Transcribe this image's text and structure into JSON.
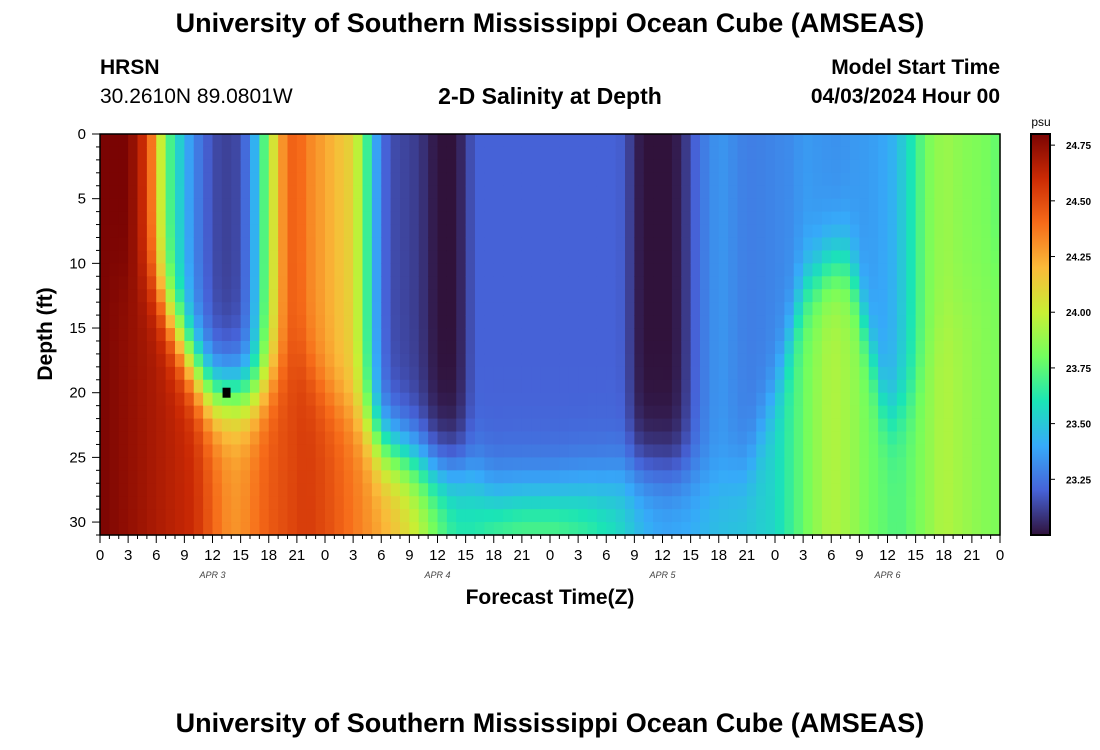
{
  "header": {
    "title": "University of Southern Mississippi Ocean Cube (AMSEAS)",
    "station": "HRSN",
    "coords": "30.2610N  89.0801W",
    "subtitle": "2-D Salinity at Depth",
    "start_label": "Model Start Time",
    "start_value": "04/03/2024 Hour 00"
  },
  "footer": {
    "title": "University of Southern Mississippi Ocean Cube (AMSEAS)"
  },
  "chart_data": {
    "type": "heatmap",
    "title": "2-D Salinity at Depth",
    "xlabel": "Forecast Time(Z)",
    "ylabel": "Depth (ft)",
    "xlim": [
      0,
      96
    ],
    "ylim": [
      0,
      31
    ],
    "y_inverted": true,
    "x_ticks": [
      0,
      3,
      6,
      9,
      12,
      15,
      18,
      21,
      24,
      27,
      30,
      33,
      36,
      39,
      42,
      45,
      48,
      51,
      54,
      57,
      60,
      63,
      66,
      69,
      72,
      75,
      78,
      81,
      84,
      87,
      90,
      93,
      96
    ],
    "x_tick_labels": [
      "0",
      "3",
      "6",
      "9",
      "12",
      "15",
      "18",
      "21",
      "0",
      "3",
      "6",
      "9",
      "12",
      "15",
      "18",
      "21",
      "0",
      "3",
      "6",
      "9",
      "12",
      "15",
      "18",
      "21",
      "0",
      "3",
      "6",
      "9",
      "12",
      "15",
      "18",
      "21",
      "0"
    ],
    "day_labels": [
      {
        "x": 12,
        "label": "APR 3"
      },
      {
        "x": 36,
        "label": "APR 4"
      },
      {
        "x": 60,
        "label": "APR 5"
      },
      {
        "x": 84,
        "label": "APR 6"
      }
    ],
    "y_ticks": [
      0,
      5,
      10,
      15,
      20,
      25,
      30
    ],
    "y_tick_labels": [
      "0",
      "5",
      "10",
      "15",
      "20",
      "25",
      "30"
    ],
    "colorbar": {
      "unit": "psu",
      "min": 23.0,
      "max": 24.8,
      "ticks": [
        23.25,
        23.5,
        23.75,
        24.0,
        24.25,
        24.5,
        24.75
      ],
      "tick_labels": [
        "23.25",
        "23.50",
        "23.75",
        "24.00",
        "24.25",
        "24.50",
        "24.75"
      ],
      "colors": [
        "#30123b",
        "#4662d7",
        "#36aaf9",
        "#1ae4b6",
        "#72fe5e",
        "#c8ef34",
        "#faba39",
        "#f66b19",
        "#cb2a04",
        "#7a0403"
      ]
    },
    "surface_profile": {
      "x": [
        0,
        3,
        5,
        6,
        7,
        8,
        10,
        12,
        13,
        14,
        15,
        16,
        17,
        18,
        19,
        20,
        21,
        22,
        23,
        24,
        27,
        28,
        29,
        30,
        31,
        33,
        34,
        35,
        36,
        37,
        38,
        40,
        42,
        45,
        48,
        53,
        55,
        56,
        57,
        58,
        60,
        61,
        62,
        63,
        64,
        65,
        66,
        68,
        69,
        70,
        72,
        74,
        75,
        77,
        79,
        80,
        82,
        84,
        85,
        86,
        87,
        88,
        90,
        92,
        94,
        95,
        96
      ],
      "value": [
        24.8,
        24.8,
        24.55,
        24.2,
        23.8,
        23.6,
        23.3,
        23.15,
        23.12,
        23.12,
        23.15,
        23.3,
        23.55,
        23.9,
        24.2,
        24.4,
        24.45,
        24.35,
        24.3,
        24.25,
        24.1,
        23.85,
        23.5,
        23.25,
        23.15,
        23.12,
        23.1,
        23.05,
        23.0,
        23.0,
        23.0,
        23.2,
        23.2,
        23.2,
        23.2,
        23.2,
        23.2,
        23.18,
        23.05,
        23.0,
        23.0,
        23.0,
        23.05,
        23.15,
        23.25,
        23.3,
        23.35,
        23.3,
        23.28,
        23.28,
        23.3,
        23.32,
        23.36,
        23.34,
        23.33,
        23.35,
        23.36,
        23.4,
        23.45,
        23.55,
        23.65,
        23.8,
        23.9,
        23.85,
        23.82,
        23.8,
        23.75
      ]
    },
    "deep_profile": {
      "x": [
        0,
        10,
        13,
        14,
        15,
        18,
        20,
        22,
        24,
        30,
        32,
        34,
        36,
        38,
        40,
        42,
        45,
        48,
        50,
        52,
        55,
        58,
        60,
        63,
        66,
        69,
        72,
        74,
        76,
        78,
        80,
        82,
        84,
        85,
        86,
        88,
        90,
        92,
        94,
        96
      ],
      "value": [
        24.8,
        24.6,
        24.35,
        24.3,
        24.3,
        24.45,
        24.5,
        24.55,
        24.5,
        24.25,
        24.15,
        24.0,
        23.8,
        23.65,
        23.65,
        23.75,
        23.8,
        23.8,
        23.75,
        23.7,
        23.6,
        23.45,
        23.4,
        23.42,
        23.48,
        23.5,
        23.55,
        23.7,
        23.85,
        23.95,
        23.9,
        23.8,
        23.75,
        23.72,
        23.75,
        23.85,
        23.95,
        23.9,
        23.85,
        23.82
      ]
    },
    "transition_depth": {
      "x": [
        0,
        6,
        10,
        12,
        14,
        16,
        18,
        21,
        24,
        28,
        30,
        33,
        36,
        39,
        42,
        48,
        54,
        57,
        60,
        63,
        66,
        69,
        72,
        75,
        78,
        80,
        84,
        87,
        90,
        93,
        96
      ],
      "depth": [
        10,
        12,
        18,
        20,
        20,
        20,
        19,
        17,
        20,
        22,
        24,
        25,
        26,
        26,
        28,
        28,
        27,
        26,
        26,
        26,
        27,
        26,
        20,
        12,
        10,
        10,
        22,
        20,
        14,
        12,
        10
      ]
    },
    "marker": {
      "x": 13.5,
      "depth": 20,
      "label": ""
    }
  }
}
